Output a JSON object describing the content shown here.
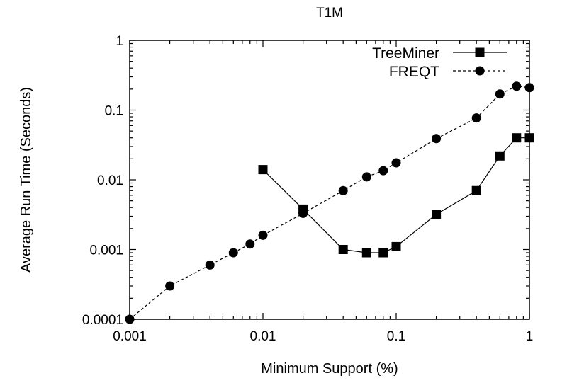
{
  "chart_data": {
    "type": "line",
    "title": "T1M",
    "xlabel": "Minimum Support (%)",
    "ylabel": "Average Run Time (Seconds)",
    "xscale": "log",
    "yscale": "log",
    "xlim": [
      0.001,
      1
    ],
    "ylim": [
      0.0001,
      1
    ],
    "xticks": [
      "0.001",
      "0.01",
      "0.1",
      "1"
    ],
    "yticks": [
      "0.0001",
      "0.001",
      "0.01",
      "0.1",
      "1"
    ],
    "grid": false,
    "legend_position": "top-right",
    "series": [
      {
        "name": "TreeMiner",
        "marker": "square",
        "line": "solid",
        "x": [
          0.01,
          0.02,
          0.04,
          0.06,
          0.08,
          0.1,
          0.2,
          0.4,
          0.6,
          0.8,
          1
        ],
        "y": [
          0.014,
          0.0038,
          0.001,
          0.0009,
          0.0009,
          0.0011,
          0.0032,
          0.007,
          0.022,
          0.04,
          0.04
        ]
      },
      {
        "name": "FREQT",
        "marker": "circle",
        "line": "dashed",
        "x": [
          0.001,
          0.002,
          0.004,
          0.006,
          0.008,
          0.01,
          0.02,
          0.04,
          0.06,
          0.08,
          0.1,
          0.2,
          0.4,
          0.6,
          0.8,
          1
        ],
        "y": [
          0.0001,
          0.0003,
          0.0006,
          0.0009,
          0.0012,
          0.0016,
          0.0033,
          0.007,
          0.011,
          0.0135,
          0.0175,
          0.039,
          0.077,
          0.17,
          0.22,
          0.21
        ]
      }
    ]
  }
}
